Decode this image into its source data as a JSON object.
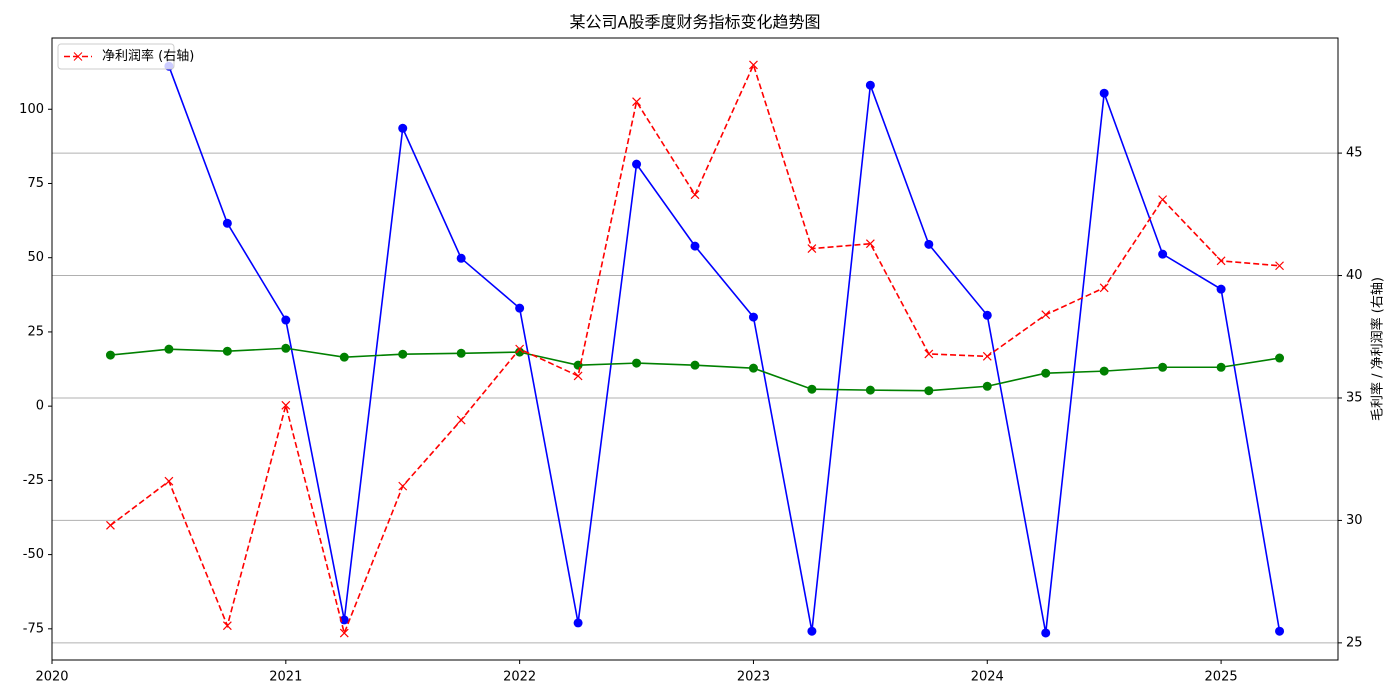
{
  "chart_data": {
    "type": "line",
    "title": "某公司A股季度财务指标变化趋势图",
    "y2label": "毛利率 / 净利润率 (右轴)",
    "x": [
      2020.25,
      2020.5,
      2020.75,
      2021,
      2021.25,
      2021.5,
      2021.75,
      2022,
      2022.25,
      2022.5,
      2022.75,
      2023,
      2023.25,
      2023.5,
      2023.75,
      2024,
      2024.25,
      2024.5,
      2024.75,
      2025,
      2025.25
    ],
    "xlim": [
      2020,
      2025.5
    ],
    "xticks": [
      2020,
      2021,
      2022,
      2023,
      2024,
      2025
    ],
    "ylim": [
      -85.5,
      124
    ],
    "yticks": [
      -75,
      -50,
      -25,
      0,
      25,
      50,
      75,
      100
    ],
    "y2lim": [
      24.3,
      49.7
    ],
    "y2ticks": [
      25,
      30,
      35,
      40,
      45
    ],
    "grid": "y2",
    "legend": "upper-left",
    "series": [
      {
        "color": "#0000ff",
        "linestyle": "solid",
        "marker": "circle",
        "values": [
          null,
          114.5,
          61.6,
          29.0,
          -72,
          93.6,
          49.8,
          33.0,
          -73,
          81.5,
          53.9,
          30.0,
          -75.8,
          108.1,
          54.5,
          30.6,
          -76.4,
          105.4,
          51.2,
          39.4,
          -75.8
        ]
      },
      {
        "color": "#008000",
        "linestyle": "solid",
        "marker": "circle",
        "values": [
          17.2,
          19.2,
          18.5,
          19.5,
          16.5,
          17.5,
          17.8,
          18.2,
          13.8,
          14.5,
          13.8,
          12.8,
          5.7,
          5.4,
          5.2,
          6.7,
          11.1,
          11.8,
          13.1,
          13.1,
          16.2
        ]
      },
      {
        "name": "净利润率 (右轴)",
        "color": "#ff0000",
        "linestyle": "dashed",
        "marker": "x",
        "axis": "y2",
        "values": [
          29.8,
          31.6,
          25.7,
          34.7,
          25.4,
          31.4,
          34.1,
          37.0,
          35.9,
          47.1,
          43.3,
          48.6,
          41.1,
          41.3,
          36.8,
          36.7,
          38.4,
          39.5,
          43.1,
          40.6,
          40.4
        ]
      }
    ]
  }
}
